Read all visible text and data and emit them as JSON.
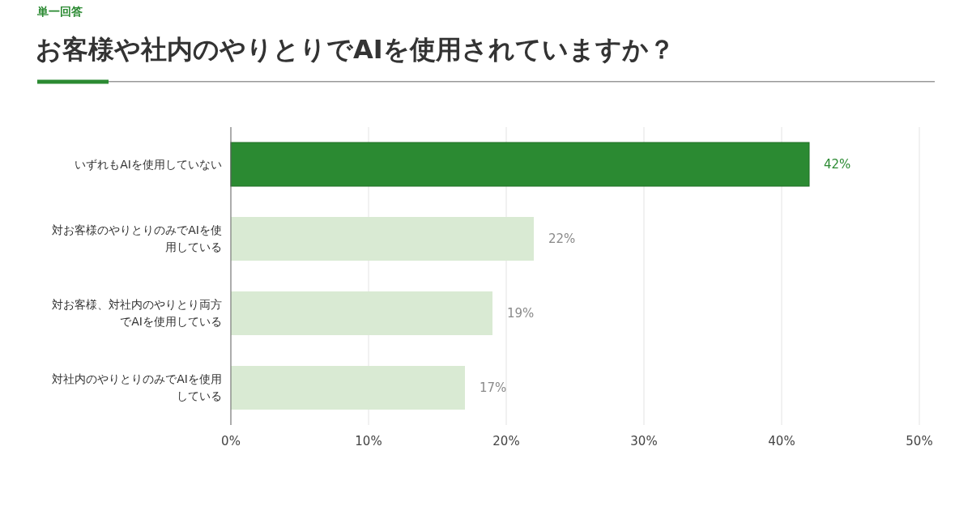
{
  "chart_data": {
    "type": "bar",
    "orientation": "horizontal",
    "subtitle": "単一回答",
    "title": "お客様や社内のやりとりでAIを使用されていますか？",
    "categories": [
      "いずれもAIを使用していない",
      "対お客様のやりとりのみでAIを使用している",
      "対お客様、対社内のやりとり両方でAIを使用している",
      "対社内のやりとりのみでAIを使用している"
    ],
    "values": [
      42,
      22,
      19,
      17
    ],
    "colors": [
      "#2b8a32",
      "#d9ead3",
      "#d9ead3",
      "#d9ead3"
    ],
    "value_labels": [
      "42%",
      "22%",
      "19%",
      "17%"
    ],
    "xlim": [
      0,
      50
    ],
    "xticks": [
      {
        "value": 0,
        "label": "0%"
      },
      {
        "value": 10,
        "label": "10%"
      },
      {
        "value": 20,
        "label": "20%"
      },
      {
        "value": 30,
        "label": "30%"
      },
      {
        "value": 40,
        "label": "40%"
      },
      {
        "value": 50,
        "label": "50%"
      }
    ],
    "grid": "x"
  }
}
